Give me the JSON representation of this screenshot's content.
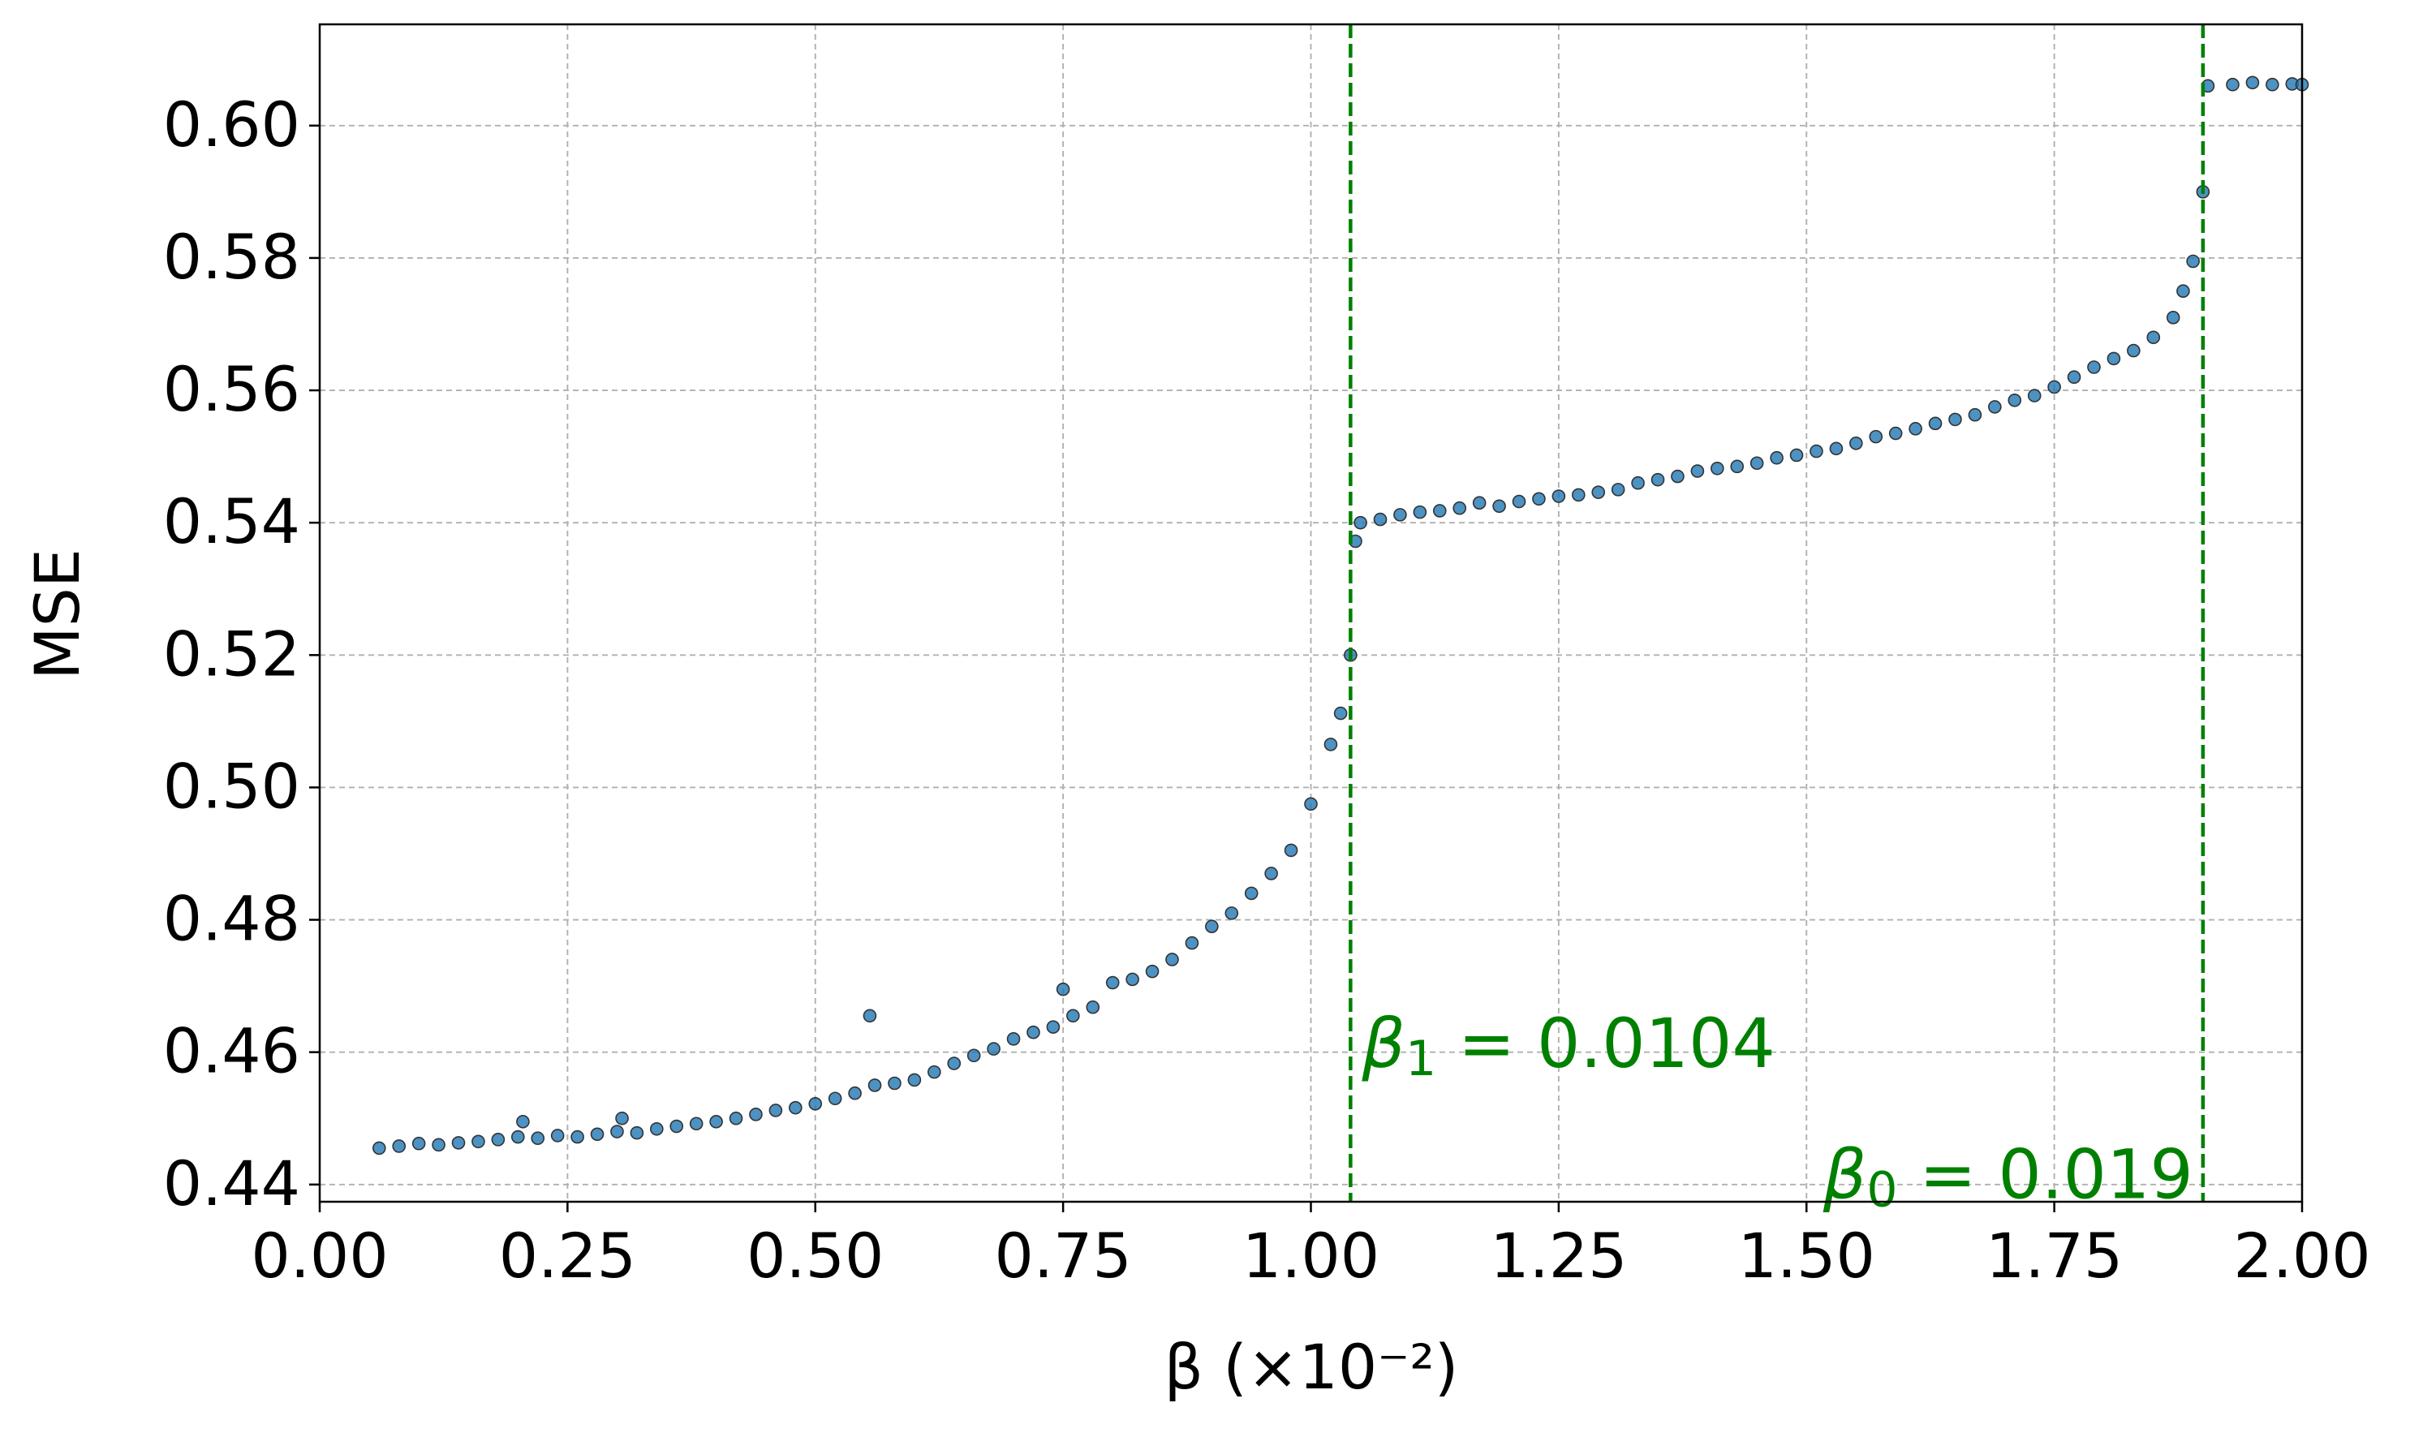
{
  "chart_data": {
    "type": "scatter",
    "xlabel": "β (×10⁻²)",
    "ylabel": "MSE",
    "color": "#1f77b4",
    "edgecolor": "#333333",
    "grid": true,
    "xlim": [
      0,
      2
    ],
    "ylim": [
      0.4374,
      0.6153
    ],
    "xticks": [
      {
        "value": 0,
        "label": "0.00"
      },
      0.25,
      {
        "value": 0.5,
        "label": "0.50"
      },
      0.75,
      {
        "value": 1,
        "label": "1.00"
      },
      1.25,
      {
        "value": 1.5,
        "label": "1.50"
      },
      1.75,
      {
        "value": 2,
        "label": "2.00"
      }
    ],
    "yticks": [
      0.44,
      0.46,
      0.48,
      {
        "value": 0.5,
        "label": "0.50"
      },
      0.52,
      0.54,
      0.56,
      0.58,
      {
        "value": 0.6,
        "label": "0.60"
      }
    ],
    "vlines": [
      {
        "x": 1.04,
        "color": "#008000"
      },
      {
        "x": 1.9,
        "color": "#008000"
      }
    ],
    "annotations": [
      {
        "symbol": "β",
        "sub": "1",
        "text": " = 0.0104"
      },
      {
        "symbol": "β",
        "sub": "0",
        "text": " = 0.019"
      }
    ],
    "x": [
      0.06,
      0.08,
      0.1,
      0.12,
      0.14,
      0.16,
      0.18,
      0.2,
      0.22,
      0.24,
      0.26,
      0.28,
      0.3,
      0.32,
      0.34,
      0.36,
      0.38,
      0.4,
      0.42,
      0.44,
      0.46,
      0.48,
      0.5,
      0.52,
      0.54,
      0.56,
      0.58,
      0.6,
      0.62,
      0.64,
      0.66,
      0.68,
      0.7,
      0.72,
      0.74,
      0.76,
      0.78,
      0.8,
      0.82,
      0.84,
      0.86,
      0.88,
      0.9,
      0.92,
      0.94,
      0.96,
      0.98,
      1.0,
      1.02,
      1.03,
      1.04,
      0.555,
      0.75,
      0.305,
      0.205,
      1.045,
      1.05,
      1.07,
      1.09,
      1.11,
      1.13,
      1.15,
      1.17,
      1.19,
      1.21,
      1.23,
      1.25,
      1.27,
      1.29,
      1.31,
      1.33,
      1.35,
      1.37,
      1.39,
      1.41,
      1.43,
      1.45,
      1.47,
      1.49,
      1.51,
      1.53,
      1.55,
      1.57,
      1.59,
      1.61,
      1.63,
      1.65,
      1.67,
      1.69,
      1.71,
      1.73,
      1.75,
      1.77,
      1.79,
      1.81,
      1.83,
      1.85,
      1.87,
      1.88,
      1.89,
      1.9,
      1.905,
      1.93,
      1.95,
      1.97,
      1.99,
      2.0
    ],
    "values": [
      0.4455,
      0.4458,
      0.4462,
      0.446,
      0.4463,
      0.4465,
      0.4468,
      0.4472,
      0.447,
      0.4474,
      0.4472,
      0.4476,
      0.448,
      0.4478,
      0.4484,
      0.4488,
      0.4492,
      0.4495,
      0.45,
      0.4506,
      0.4512,
      0.4516,
      0.4522,
      0.453,
      0.4538,
      0.455,
      0.4553,
      0.4558,
      0.457,
      0.4583,
      0.4595,
      0.4605,
      0.462,
      0.463,
      0.4638,
      0.4655,
      0.4668,
      0.4705,
      0.471,
      0.4722,
      0.474,
      0.4765,
      0.479,
      0.481,
      0.484,
      0.487,
      0.4905,
      0.4975,
      0.5065,
      0.5112,
      0.52,
      0.4655,
      0.4695,
      0.45,
      0.4495,
      0.5372,
      0.54,
      0.5405,
      0.5412,
      0.5416,
      0.5418,
      0.5422,
      0.543,
      0.5425,
      0.5432,
      0.5436,
      0.544,
      0.5442,
      0.5446,
      0.545,
      0.546,
      0.5465,
      0.547,
      0.5478,
      0.5482,
      0.5485,
      0.549,
      0.5498,
      0.5502,
      0.5508,
      0.5512,
      0.552,
      0.553,
      0.5535,
      0.5542,
      0.555,
      0.5556,
      0.5563,
      0.5575,
      0.5585,
      0.5592,
      0.5605,
      0.562,
      0.5635,
      0.5648,
      0.566,
      0.568,
      0.571,
      0.575,
      0.5795,
      0.59,
      0.606,
      0.6062,
      0.6065,
      0.6062,
      0.6063,
      0.6062
    ]
  }
}
